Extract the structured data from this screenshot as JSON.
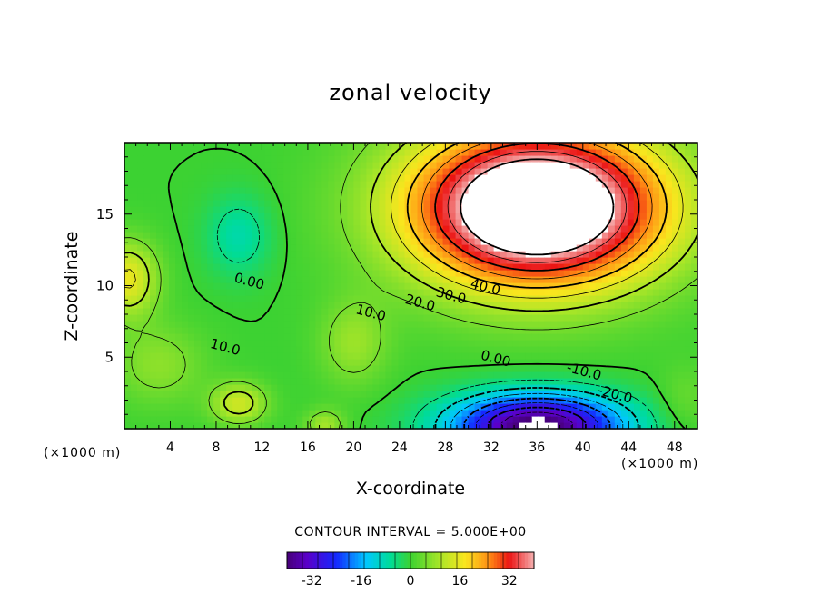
{
  "chart_data": {
    "type": "contour",
    "title": "zonal velocity",
    "xlabel": "X-coordinate",
    "ylabel": "Z-coordinate",
    "x_unit": "(×1000 m)",
    "x_range": [
      0,
      50
    ],
    "y_range": [
      0,
      20
    ],
    "x_ticks": [
      4,
      8,
      12,
      16,
      20,
      24,
      28,
      32,
      36,
      40,
      44,
      48
    ],
    "y_ticks": [
      5,
      10,
      15
    ],
    "contour_labels": [
      {
        "text": "0.00",
        "x": 10.8,
        "y": 10.0
      },
      {
        "text": "10.0",
        "x": 21.4,
        "y": 7.8
      },
      {
        "text": "20.0",
        "x": 25.7,
        "y": 8.5
      },
      {
        "text": "30.0",
        "x": 28.4,
        "y": 9.0
      },
      {
        "text": "40.0",
        "x": 31.4,
        "y": 9.6
      },
      {
        "text": "10.0",
        "x": 8.7,
        "y": 5.4
      },
      {
        "text": "0.00",
        "x": 32.3,
        "y": 4.6
      },
      {
        "text": "-10.0",
        "x": 40.0,
        "y": 3.7
      },
      {
        "text": "-20.0",
        "x": 42.7,
        "y": 2.1
      }
    ],
    "contour_interval_label": "CONTOUR INTERVAL = 5.000E+00",
    "colorbar": {
      "min": -40,
      "max": 40,
      "ticks": [
        "-32",
        "-16",
        "0",
        "16",
        "32"
      ]
    },
    "colors": {
      "neg": "#6a00c8",
      "zero": "#3ccf2e",
      "pos": "#e81010",
      "high": "#f2a8a8"
    }
  }
}
